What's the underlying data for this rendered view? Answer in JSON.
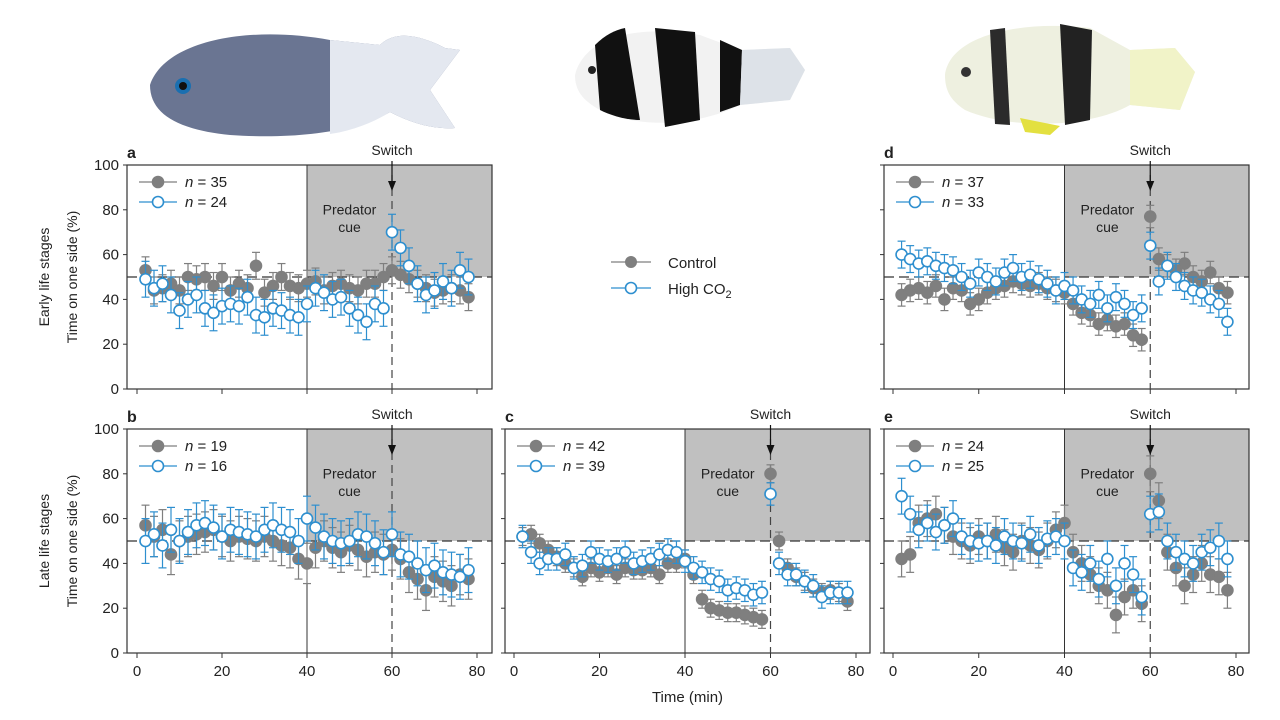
{
  "colors": {
    "control": "#7f7f7f",
    "high_co2": "#2e8fcf",
    "shade": "#c0c0c0"
  },
  "legend": {
    "control_label": "Control",
    "high_co2_label": "High CO",
    "high_co2_sub": "2"
  },
  "row_labels": [
    "Early life stages",
    "Late life stages"
  ],
  "fish_illustrations": [
    "blue-grey damselfish",
    "black-white banded humbug",
    "pale banded humbug"
  ],
  "chart_data": [
    {
      "type": "scatter",
      "panel": "a",
      "ylabel": "Time on one side (%)",
      "xlabel": "",
      "ylim": [
        0,
        100
      ],
      "xlim": [
        0,
        80
      ],
      "yticks": [
        "0",
        "20",
        "40",
        "60",
        "80",
        "100"
      ],
      "xticks": [],
      "shade_label_1": "Predator",
      "shade_label_2": "cue",
      "switch_label": "Switch",
      "x": [
        2,
        4,
        6,
        8,
        10,
        12,
        14,
        16,
        18,
        20,
        22,
        24,
        26,
        28,
        30,
        32,
        34,
        36,
        38,
        40,
        42,
        44,
        46,
        48,
        50,
        52,
        54,
        56,
        58,
        60,
        62,
        64,
        66,
        68,
        70,
        72,
        74,
        76,
        78
      ],
      "series": [
        {
          "name": "n = 35",
          "n_label": "35",
          "group": "control",
          "err": 6,
          "values": [
            53,
            44,
            45,
            47,
            44,
            50,
            49,
            50,
            46,
            50,
            44,
            47,
            45,
            55,
            43,
            46,
            50,
            46,
            45,
            47,
            48,
            44,
            46,
            47,
            45,
            44,
            47,
            47,
            50,
            53,
            51,
            49,
            47,
            45,
            43,
            44,
            45,
            44,
            41
          ]
        },
        {
          "name": "n = 24",
          "n_label": "24",
          "group": "high_co2",
          "err": 8,
          "values": [
            49,
            45,
            47,
            42,
            35,
            40,
            42,
            36,
            34,
            37,
            38,
            37,
            41,
            33,
            32,
            36,
            35,
            33,
            32,
            38,
            45,
            43,
            40,
            41,
            36,
            33,
            30,
            38,
            36,
            70,
            63,
            55,
            47,
            42,
            44,
            48,
            45,
            53,
            50
          ]
        }
      ]
    },
    {
      "type": "scatter",
      "panel": "b",
      "ylabel": "Time on one side (%)",
      "xlabel": "",
      "ylim": [
        0,
        100
      ],
      "xlim": [
        0,
        80
      ],
      "yticks": [
        "0",
        "20",
        "40",
        "60",
        "80",
        "100"
      ],
      "xticks": [
        "0",
        "20",
        "40",
        "60",
        "80"
      ],
      "shade_label_1": "Predator",
      "shade_label_2": "cue",
      "switch_label": "Switch",
      "x": [
        2,
        4,
        6,
        8,
        10,
        12,
        14,
        16,
        18,
        20,
        22,
        24,
        26,
        28,
        30,
        32,
        34,
        36,
        38,
        40,
        42,
        44,
        46,
        48,
        50,
        52,
        54,
        56,
        58,
        60,
        62,
        64,
        66,
        68,
        70,
        72,
        74,
        76,
        78
      ],
      "series": [
        {
          "name": "n = 19",
          "n_label": "19",
          "group": "control",
          "err": 9,
          "values": [
            57,
            52,
            55,
            44,
            50,
            52,
            53,
            54,
            55,
            52,
            50,
            52,
            51,
            50,
            52,
            50,
            48,
            47,
            42,
            40,
            47,
            50,
            47,
            45,
            48,
            46,
            43,
            45,
            44,
            46,
            42,
            36,
            33,
            28,
            34,
            32,
            30,
            35,
            33
          ]
        },
        {
          "name": "n = 16",
          "n_label": "16",
          "group": "high_co2",
          "err": 10,
          "values": [
            50,
            53,
            48,
            55,
            50,
            54,
            57,
            58,
            56,
            52,
            55,
            54,
            53,
            52,
            55,
            57,
            55,
            54,
            50,
            60,
            56,
            52,
            50,
            49,
            50,
            53,
            52,
            49,
            45,
            53,
            44,
            43,
            40,
            37,
            39,
            36,
            35,
            34,
            37
          ]
        }
      ]
    },
    {
      "type": "scatter",
      "panel": "c",
      "ylabel": "",
      "xlabel": "Time (min)",
      "ylim": [
        0,
        100
      ],
      "xlim": [
        0,
        80
      ],
      "yticks": [],
      "xticks": [
        "0",
        "20",
        "40",
        "60",
        "80"
      ],
      "shade_label_1": "Predator",
      "shade_label_2": "cue",
      "switch_label": "Switch",
      "x": [
        2,
        4,
        6,
        8,
        10,
        12,
        14,
        16,
        18,
        20,
        22,
        24,
        26,
        28,
        30,
        32,
        34,
        36,
        38,
        40,
        42,
        44,
        46,
        48,
        50,
        52,
        54,
        56,
        58,
        60,
        62,
        64,
        66,
        68,
        70,
        72,
        74,
        76,
        78
      ],
      "series": [
        {
          "name": "n = 42",
          "n_label": "42",
          "group": "control",
          "err": 4,
          "values": [
            52,
            53,
            49,
            46,
            43,
            40,
            38,
            34,
            38,
            36,
            38,
            35,
            38,
            37,
            37,
            38,
            35,
            40,
            40,
            42,
            35,
            24,
            20,
            19,
            18,
            18,
            17,
            16,
            15,
            80,
            50,
            38,
            34,
            32,
            29,
            27,
            28,
            27,
            23
          ]
        },
        {
          "name": "n = 39",
          "n_label": "39",
          "group": "high_co2",
          "err": 5,
          "values": [
            52,
            45,
            40,
            42,
            42,
            44,
            38,
            39,
            45,
            42,
            41,
            42,
            45,
            40,
            41,
            42,
            44,
            46,
            45,
            41,
            38,
            36,
            33,
            32,
            28,
            29,
            28,
            26,
            27,
            71,
            40,
            35,
            35,
            32,
            30,
            25,
            27,
            27,
            27
          ]
        }
      ]
    },
    {
      "type": "scatter",
      "panel": "d",
      "ylabel": "",
      "xlabel": "",
      "ylim": [
        0,
        100
      ],
      "xlim": [
        0,
        80
      ],
      "yticks": [],
      "xticks": [],
      "shade_label_1": "Predator",
      "shade_label_2": "cue",
      "switch_label": "Switch",
      "x": [
        2,
        4,
        6,
        8,
        10,
        12,
        14,
        16,
        18,
        20,
        22,
        24,
        26,
        28,
        30,
        32,
        34,
        36,
        38,
        40,
        42,
        44,
        46,
        48,
        50,
        52,
        54,
        56,
        58,
        60,
        62,
        64,
        66,
        68,
        70,
        72,
        74,
        76,
        78
      ],
      "series": [
        {
          "name": "n = 37",
          "n_label": "37",
          "group": "control",
          "err": 5,
          "values": [
            42,
            44,
            45,
            43,
            46,
            40,
            45,
            44,
            38,
            40,
            43,
            45,
            46,
            48,
            47,
            46,
            47,
            45,
            44,
            43,
            38,
            34,
            33,
            29,
            31,
            28,
            29,
            24,
            22,
            77,
            58,
            55,
            53,
            56,
            50,
            48,
            52,
            45,
            43
          ]
        },
        {
          "name": "n = 33",
          "n_label": "33",
          "group": "high_co2",
          "err": 6,
          "values": [
            60,
            58,
            56,
            57,
            55,
            54,
            53,
            50,
            47,
            52,
            50,
            48,
            52,
            54,
            50,
            51,
            49,
            47,
            44,
            46,
            44,
            40,
            38,
            42,
            36,
            41,
            38,
            33,
            36,
            64,
            48,
            55,
            50,
            46,
            44,
            43,
            40,
            38,
            30
          ]
        }
      ]
    },
    {
      "type": "scatter",
      "panel": "e",
      "ylabel": "",
      "xlabel": "",
      "ylim": [
        0,
        100
      ],
      "xlim": [
        0,
        80
      ],
      "yticks": [],
      "xticks": [
        "0",
        "20",
        "40",
        "60",
        "80"
      ],
      "shade_label_1": "Predator",
      "shade_label_2": "cue",
      "switch_label": "Switch",
      "x": [
        2,
        4,
        6,
        8,
        10,
        12,
        14,
        16,
        18,
        20,
        22,
        24,
        26,
        28,
        30,
        32,
        34,
        36,
        38,
        40,
        42,
        44,
        46,
        48,
        50,
        52,
        54,
        56,
        58,
        60,
        62,
        64,
        66,
        68,
        70,
        72,
        74,
        76,
        78
      ],
      "series": [
        {
          "name": "n = 24",
          "n_label": "24",
          "group": "control",
          "err": 8,
          "values": [
            42,
            44,
            58,
            60,
            62,
            57,
            52,
            50,
            48,
            52,
            50,
            53,
            47,
            45,
            50,
            48,
            46,
            50,
            55,
            58,
            45,
            40,
            35,
            30,
            28,
            17,
            25,
            28,
            22,
            80,
            68,
            45,
            38,
            30,
            35,
            40,
            35,
            34,
            28
          ]
        },
        {
          "name": "n = 25",
          "n_label": "25",
          "group": "high_co2",
          "err": 8,
          "values": [
            70,
            62,
            55,
            58,
            54,
            57,
            60,
            52,
            50,
            49,
            50,
            48,
            52,
            50,
            49,
            53,
            48,
            51,
            52,
            50,
            38,
            36,
            40,
            33,
            42,
            30,
            40,
            35,
            25,
            62,
            63,
            50,
            45,
            42,
            40,
            45,
            47,
            50,
            42
          ]
        }
      ]
    }
  ]
}
